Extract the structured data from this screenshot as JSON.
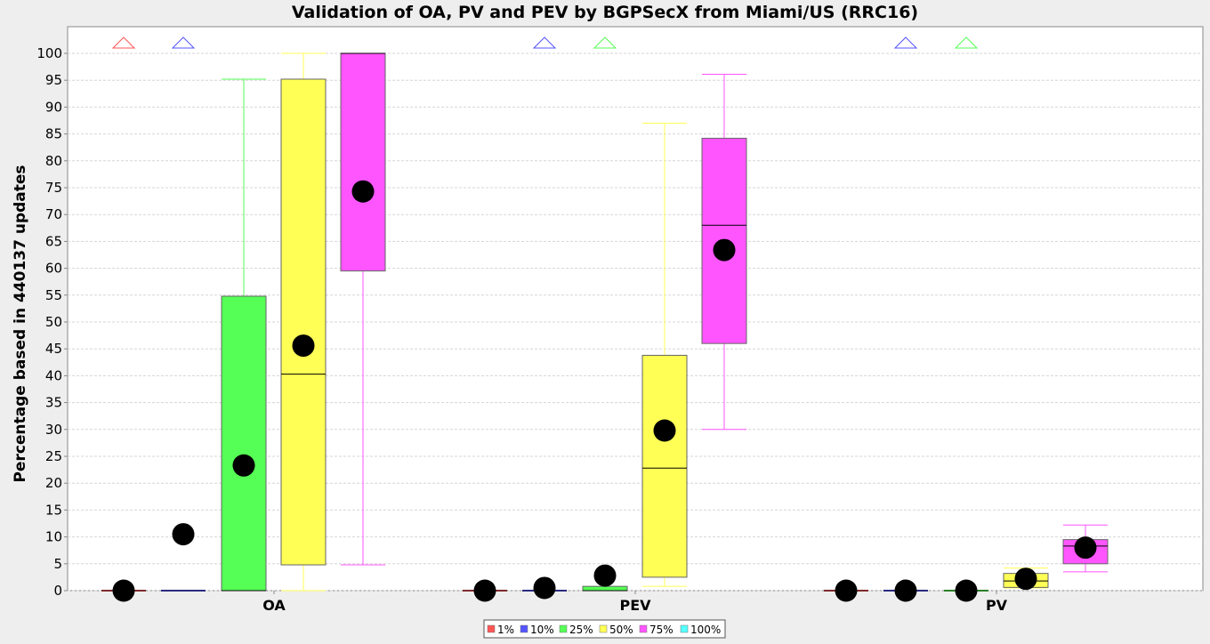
{
  "chart_data": {
    "type": "box",
    "title": "Validation of OA, PV and PEV by BGPSecX from Miami/US (RRC16)",
    "xlabel": "",
    "ylabel": "Percentage based in 440137 updates",
    "ylim": [
      0,
      105
    ],
    "yticks": [
      0,
      5,
      10,
      15,
      20,
      25,
      30,
      35,
      40,
      45,
      50,
      55,
      60,
      65,
      70,
      75,
      80,
      85,
      90,
      95,
      100
    ],
    "grid": true,
    "legend_position": "bottom-center",
    "categories": [
      "OA",
      "PEV",
      "PV"
    ],
    "series": [
      {
        "name": "1%",
        "color": "#ff5555",
        "boxes": [
          {
            "category": "OA",
            "min": 0,
            "q1": 0,
            "median": 0,
            "q3": 0,
            "max": 0,
            "mean": 0,
            "outlier_above": true
          },
          {
            "category": "PEV",
            "min": 0,
            "q1": 0,
            "median": 0,
            "q3": 0,
            "max": 0,
            "mean": 0,
            "outlier_above": false
          },
          {
            "category": "PV",
            "min": 0,
            "q1": 0,
            "median": 0,
            "q3": 0,
            "max": 0,
            "mean": 0,
            "outlier_above": false
          }
        ]
      },
      {
        "name": "10%",
        "color": "#5555ff",
        "boxes": [
          {
            "category": "OA",
            "min": 0,
            "q1": 0,
            "median": 0,
            "q3": 0,
            "max": 0,
            "mean": 10.5,
            "outlier_above": true
          },
          {
            "category": "PEV",
            "min": 0,
            "q1": 0,
            "median": 0,
            "q3": 0,
            "max": 0,
            "mean": 0.5,
            "outlier_above": true
          },
          {
            "category": "PV",
            "min": 0,
            "q1": 0,
            "median": 0,
            "q3": 0,
            "max": 0,
            "mean": 0,
            "outlier_above": true
          }
        ]
      },
      {
        "name": "25%",
        "color": "#55ff55",
        "boxes": [
          {
            "category": "OA",
            "min": 0,
            "q1": 0,
            "median": 0,
            "q3": 54.8,
            "max": 95.2,
            "mean": 23.3,
            "outlier_above": false
          },
          {
            "category": "PEV",
            "min": 0,
            "q1": 0,
            "median": 0,
            "q3": 0.8,
            "max": 0.8,
            "mean": 2.8,
            "outlier_above": true
          },
          {
            "category": "PV",
            "min": 0,
            "q1": 0,
            "median": 0,
            "q3": 0,
            "max": 0,
            "mean": 0,
            "outlier_above": true
          }
        ]
      },
      {
        "name": "50%",
        "color": "#ffff55",
        "boxes": [
          {
            "category": "OA",
            "min": 0,
            "q1": 4.8,
            "median": 40.3,
            "q3": 95.2,
            "max": 100,
            "mean": 45.6,
            "outlier_above": false
          },
          {
            "category": "PEV",
            "min": 0.8,
            "q1": 2.5,
            "median": 22.8,
            "q3": 43.8,
            "max": 87,
            "mean": 29.8,
            "outlier_above": false
          },
          {
            "category": "PV",
            "min": 0.5,
            "q1": 0.6,
            "median": 1.8,
            "q3": 3.2,
            "max": 4.2,
            "mean": 2.2,
            "outlier_above": false
          }
        ]
      },
      {
        "name": "75%",
        "color": "#ff55ff",
        "boxes": [
          {
            "category": "OA",
            "min": 4.8,
            "q1": 59.5,
            "median": 100,
            "q3": 100,
            "max": 100,
            "mean": 74.3,
            "outlier_above": false
          },
          {
            "category": "PEV",
            "min": 30,
            "q1": 46,
            "median": 68,
            "q3": 84.2,
            "max": 96.1,
            "mean": 63.4,
            "outlier_above": false
          },
          {
            "category": "PV",
            "min": 3.5,
            "q1": 5,
            "median": 8.3,
            "q3": 9.5,
            "max": 12.2,
            "mean": 8,
            "outlier_above": false
          }
        ]
      },
      {
        "name": "100%",
        "color": "#55ffff",
        "boxes": []
      }
    ]
  }
}
